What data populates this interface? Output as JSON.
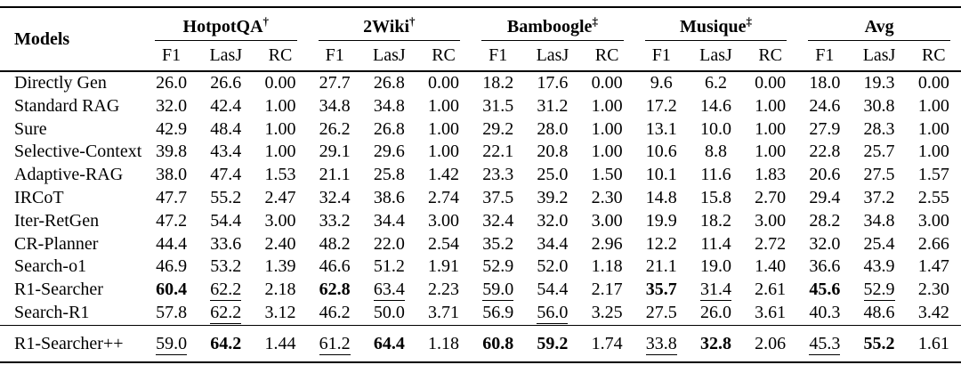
{
  "colors": {
    "text": "#000000",
    "background": "#ffffff",
    "rule": "#000000"
  },
  "table": {
    "models_header": "Models",
    "groups": [
      {
        "name": "HotpotQA",
        "mark": "†"
      },
      {
        "name": "2Wiki",
        "mark": "†"
      },
      {
        "name": "Bamboogle",
        "mark": "‡"
      },
      {
        "name": "Musique",
        "mark": "‡"
      },
      {
        "name": "Avg",
        "mark": ""
      }
    ],
    "subcolumns": [
      "F1",
      "LasJ",
      "RC"
    ],
    "rows": [
      {
        "model": "Directly Gen",
        "values": [
          "26.0",
          "26.6",
          "0.00",
          "27.7",
          "26.8",
          "0.00",
          "18.2",
          "17.6",
          "0.00",
          "9.6",
          "6.2",
          "0.00",
          "18.0",
          "19.3",
          "0.00"
        ]
      },
      {
        "model": "Standard RAG",
        "values": [
          "32.0",
          "42.4",
          "1.00",
          "34.8",
          "34.8",
          "1.00",
          "31.5",
          "31.2",
          "1.00",
          "17.2",
          "14.6",
          "1.00",
          "24.6",
          "30.8",
          "1.00"
        ]
      },
      {
        "model": "Sure",
        "values": [
          "42.9",
          "48.4",
          "1.00",
          "26.2",
          "26.8",
          "1.00",
          "29.2",
          "28.0",
          "1.00",
          "13.1",
          "10.0",
          "1.00",
          "27.9",
          "28.3",
          "1.00"
        ]
      },
      {
        "model": "Selective-Context",
        "values": [
          "39.8",
          "43.4",
          "1.00",
          "29.1",
          "29.6",
          "1.00",
          "22.1",
          "20.8",
          "1.00",
          "10.6",
          "8.8",
          "1.00",
          "22.8",
          "25.7",
          "1.00"
        ]
      },
      {
        "model": "Adaptive-RAG",
        "values": [
          "38.0",
          "47.4",
          "1.53",
          "21.1",
          "25.8",
          "1.42",
          "23.3",
          "25.0",
          "1.50",
          "10.1",
          "11.6",
          "1.83",
          "20.6",
          "27.5",
          "1.57"
        ]
      },
      {
        "model": "IRCoT",
        "values": [
          "47.7",
          "55.2",
          "2.47",
          "32.4",
          "38.6",
          "2.74",
          "37.5",
          "39.2",
          "2.30",
          "14.8",
          "15.8",
          "2.70",
          "29.4",
          "37.2",
          "2.55"
        ]
      },
      {
        "model": "Iter-RetGen",
        "values": [
          "47.2",
          "54.4",
          "3.00",
          "33.2",
          "34.4",
          "3.00",
          "32.4",
          "32.0",
          "3.00",
          "19.9",
          "18.2",
          "3.00",
          "28.2",
          "34.8",
          "3.00"
        ]
      },
      {
        "model": "CR-Planner",
        "values": [
          "44.4",
          "33.6",
          "2.40",
          "48.2",
          "22.0",
          "2.54",
          "35.2",
          "34.4",
          "2.96",
          "12.2",
          "11.4",
          "2.72",
          "32.0",
          "25.4",
          "2.66"
        ]
      },
      {
        "model": "Search-o1",
        "values": [
          "46.9",
          "53.2",
          "1.39",
          "46.6",
          "51.2",
          "1.91",
          "52.9",
          "52.0",
          "1.18",
          "21.1",
          "19.0",
          "1.40",
          "36.6",
          "43.9",
          "1.47"
        ]
      },
      {
        "model": "R1-Searcher",
        "values": [
          "60.4",
          "62.2",
          "2.18",
          "62.8",
          "63.4",
          "2.23",
          "59.0",
          "54.4",
          "2.17",
          "35.7",
          "31.4",
          "2.61",
          "45.6",
          "52.9",
          "2.30"
        ],
        "styles": [
          "b",
          "u",
          "",
          "b",
          "u",
          "",
          "u",
          "",
          "",
          "b",
          "u",
          "",
          "b",
          "u",
          ""
        ]
      },
      {
        "model": "Search-R1",
        "values": [
          "57.8",
          "62.2",
          "3.12",
          "46.2",
          "50.0",
          "3.71",
          "56.9",
          "56.0",
          "3.25",
          "27.5",
          "26.0",
          "3.61",
          "40.3",
          "48.6",
          "3.42"
        ],
        "styles": [
          "",
          "u",
          "",
          "",
          "",
          "",
          "",
          "u",
          "",
          "",
          "",
          "",
          "",
          "",
          ""
        ]
      },
      {
        "model": "R1-Searcher++",
        "separated": true,
        "values": [
          "59.0",
          "64.2",
          "1.44",
          "61.2",
          "64.4",
          "1.18",
          "60.8",
          "59.2",
          "1.74",
          "33.8",
          "32.8",
          "2.06",
          "45.3",
          "55.2",
          "1.61"
        ],
        "styles": [
          "u",
          "b",
          "",
          "u",
          "b",
          "",
          "b",
          "b",
          "",
          "u",
          "b",
          "",
          "u",
          "b",
          ""
        ]
      }
    ]
  }
}
